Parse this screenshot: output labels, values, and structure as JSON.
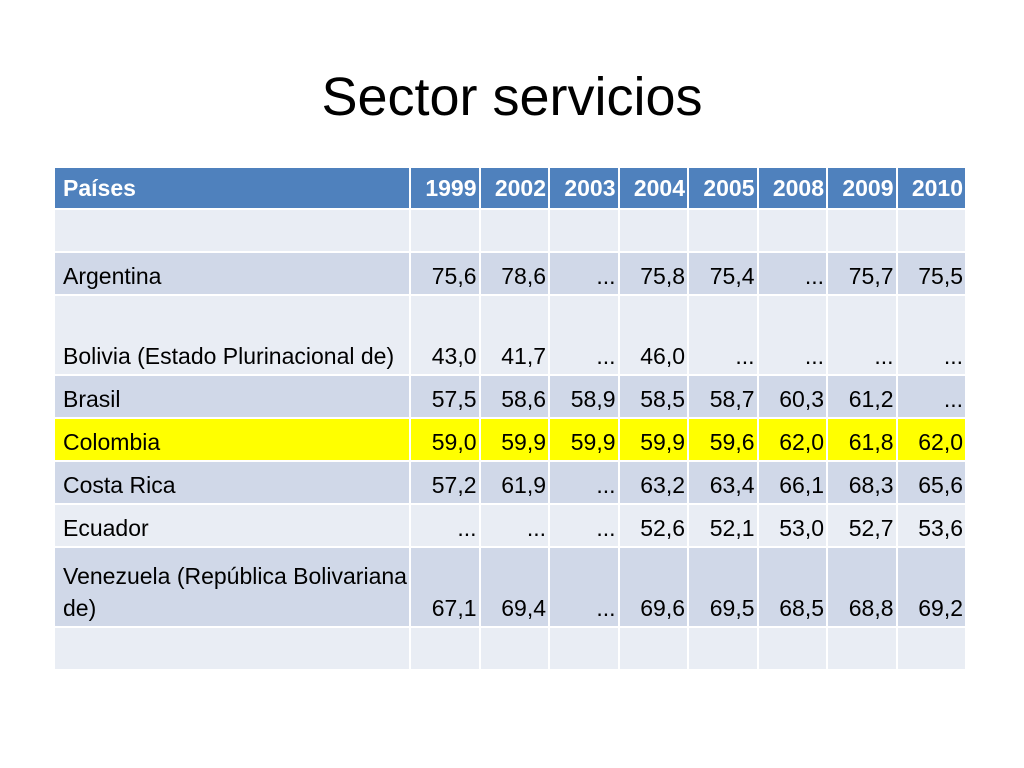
{
  "slide": {
    "title": "Sector servicios"
  },
  "colors": {
    "header_bg": "#4f81bd",
    "row_band_dark": "#d0d8e8",
    "row_band_light": "#e9edf4",
    "highlight": "#ffff00"
  },
  "table": {
    "country_header": "Países",
    "years": [
      "1999",
      "2002",
      "2003",
      "2004",
      "2005",
      "2008",
      "2009",
      "2010"
    ],
    "rows": [
      {
        "country": "",
        "values": [
          "",
          "",
          "",
          "",
          "",
          "",
          "",
          ""
        ],
        "band": "band-light",
        "tall": false,
        "highlight": false
      },
      {
        "country": "Argentina",
        "values": [
          "75,6",
          "78,6",
          "...",
          "75,8",
          "75,4",
          "...",
          "75,7",
          "75,5"
        ],
        "band": "band-dark",
        "tall": false,
        "highlight": false
      },
      {
        "country": "Bolivia (Estado Plurinacional de)",
        "values": [
          "43,0",
          "41,7",
          "...",
          "46,0",
          "...",
          "...",
          "...",
          "..."
        ],
        "band": "band-light",
        "tall": true,
        "highlight": false
      },
      {
        "country": "Brasil",
        "values": [
          "57,5",
          "58,6",
          "58,9",
          "58,5",
          "58,7",
          "60,3",
          "61,2",
          "..."
        ],
        "band": "band-dark",
        "tall": false,
        "highlight": false
      },
      {
        "country": "Colombia",
        "values": [
          "59,0",
          "59,9",
          "59,9",
          "59,9",
          "59,6",
          "62,0",
          "61,8",
          "62,0"
        ],
        "band": "band-light",
        "tall": false,
        "highlight": true
      },
      {
        "country": "Costa Rica",
        "values": [
          "57,2",
          "61,9",
          "...",
          "63,2",
          "63,4",
          "66,1",
          "68,3",
          "65,6"
        ],
        "band": "band-dark",
        "tall": false,
        "highlight": false
      },
      {
        "country": "Ecuador",
        "values": [
          "...",
          "...",
          "...",
          "52,6",
          "52,1",
          "53,0",
          "52,7",
          "53,6"
        ],
        "band": "band-light",
        "tall": false,
        "highlight": false
      },
      {
        "country": "Venezuela (República Bolivariana de)",
        "values": [
          "67,1",
          "69,4",
          "...",
          "69,6",
          "69,5",
          "68,5",
          "68,8",
          "69,2"
        ],
        "band": "band-dark",
        "tall": true,
        "highlight": false
      },
      {
        "country": "",
        "values": [
          "",
          "",
          "",
          "",
          "",
          "",
          "",
          ""
        ],
        "band": "band-light",
        "tall": false,
        "highlight": false
      }
    ]
  }
}
